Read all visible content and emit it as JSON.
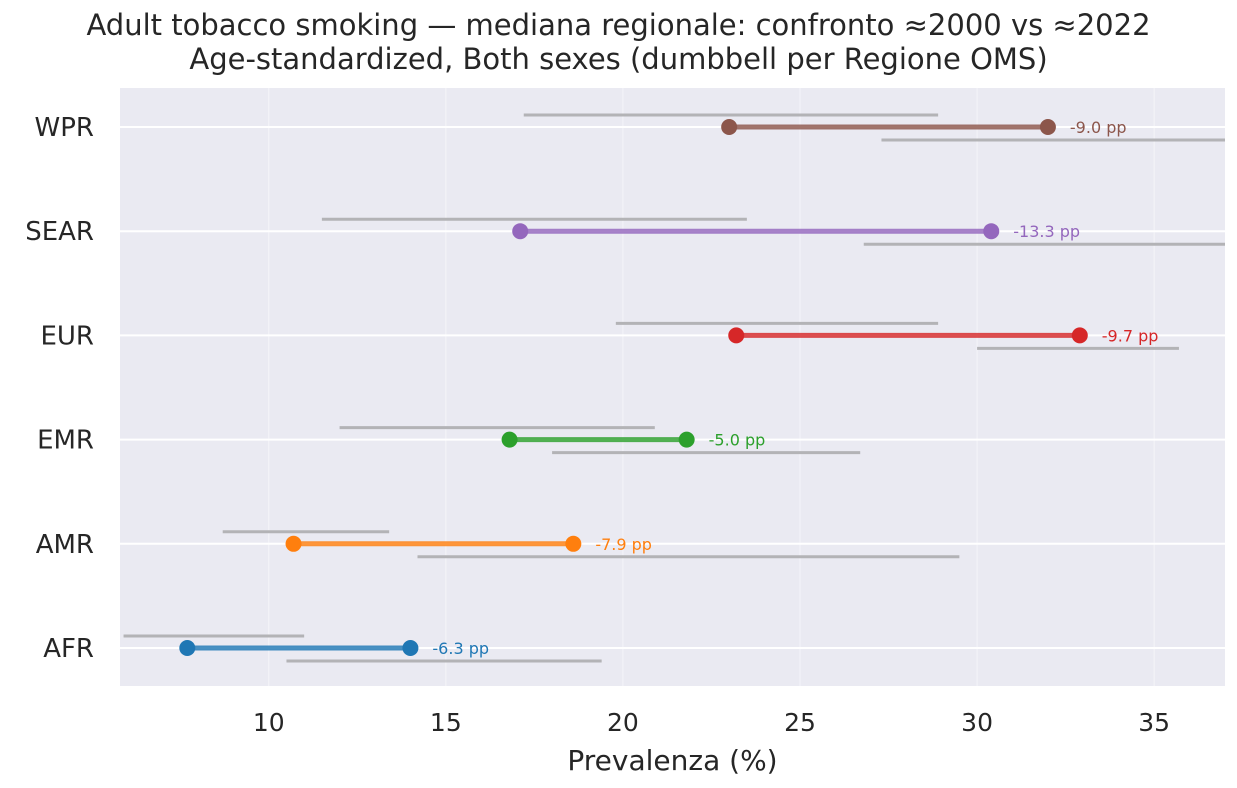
{
  "chart_data": {
    "type": "dumbbell",
    "title": "Adult tobacco smoking — mediana regionale: confronto ≈2000 vs ≈2022",
    "subtitle": "Age-standardized, Both sexes (dumbbell per Regione OMS)",
    "xlabel": "Prevalenza (%)",
    "ylabel": "",
    "xlim": [
      5.8,
      37.0
    ],
    "xticks": [
      10,
      15,
      20,
      25,
      30,
      35
    ],
    "grid": true,
    "regions": [
      {
        "name": "AFR",
        "v2000": 14.0,
        "v2022": 7.7,
        "label": "-6.3 pp",
        "color": "#1f77b4",
        "iqr2022": [
          5.9,
          11.0
        ],
        "iqr2000": [
          10.5,
          19.4
        ]
      },
      {
        "name": "AMR",
        "v2000": 18.6,
        "v2022": 10.7,
        "label": "-7.9 pp",
        "color": "#ff7f0e",
        "iqr2022": [
          8.7,
          13.4
        ],
        "iqr2000": [
          14.2,
          29.5
        ]
      },
      {
        "name": "EMR",
        "v2000": 21.8,
        "v2022": 16.8,
        "label": "-5.0 pp",
        "color": "#2ca02c",
        "iqr2022": [
          12.0,
          20.9
        ],
        "iqr2000": [
          18.0,
          26.7
        ]
      },
      {
        "name": "EUR",
        "v2000": 32.9,
        "v2022": 23.2,
        "label": "-9.7 pp",
        "color": "#d62728",
        "iqr2022": [
          19.8,
          28.9
        ],
        "iqr2000": [
          30.0,
          35.7
        ]
      },
      {
        "name": "SEAR",
        "v2000": 30.4,
        "v2022": 17.1,
        "label": "-13.3 pp",
        "color": "#9467bd",
        "iqr2022": [
          11.5,
          23.5
        ],
        "iqr2000": [
          26.8,
          37.0
        ]
      },
      {
        "name": "WPR",
        "v2000": 32.0,
        "v2022": 23.0,
        "label": "-9.0 pp",
        "color": "#8c564b",
        "iqr2022": [
          17.2,
          28.9
        ],
        "iqr2000": [
          27.3,
          37.0
        ]
      }
    ]
  }
}
